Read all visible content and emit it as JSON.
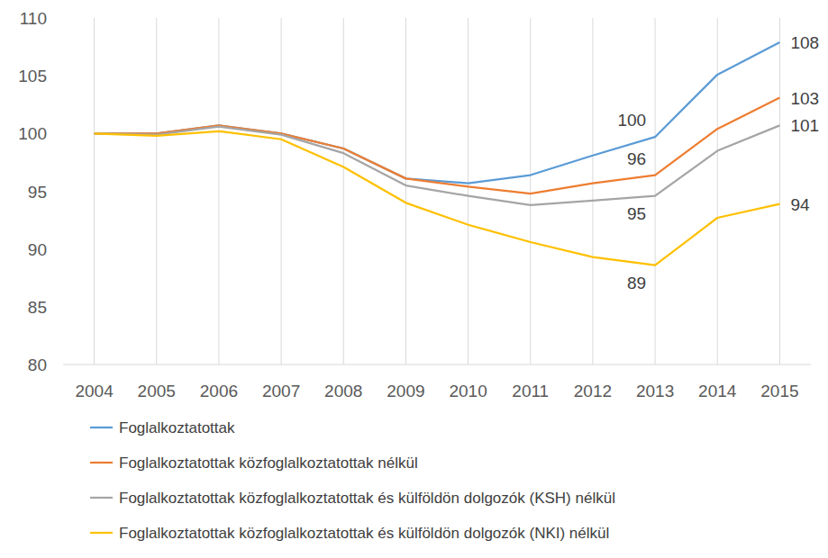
{
  "chart_data": {
    "type": "line",
    "categories": [
      "2004",
      "2005",
      "2006",
      "2007",
      "2008",
      "2009",
      "2010",
      "2011",
      "2012",
      "2013",
      "2014",
      "2015"
    ],
    "ylim": [
      80,
      110
    ],
    "yticks": [
      80,
      85,
      90,
      95,
      100,
      105,
      110
    ],
    "grid": "x",
    "legend": "bottom",
    "series": [
      {
        "name": "Foglalkoztatottak",
        "color": "#5b9bd5",
        "values": [
          100,
          100,
          100.7,
          100,
          98.7,
          96.1,
          95.7,
          96.4,
          98.1,
          99.7,
          105.1,
          107.9
        ],
        "value_labels": [
          null,
          null,
          null,
          null,
          null,
          null,
          null,
          null,
          null,
          "100",
          null,
          "108"
        ]
      },
      {
        "name": "Foglalkoztatottak közfoglalkoztatottak nélkül",
        "color": "#ed7d31",
        "values": [
          100,
          100,
          100.7,
          100,
          98.7,
          96.1,
          95.4,
          94.8,
          95.7,
          96.4,
          100.4,
          103.1
        ],
        "value_labels": [
          null,
          null,
          null,
          null,
          null,
          null,
          null,
          null,
          null,
          "96",
          null,
          "103"
        ]
      },
      {
        "name": "Foglalkoztatottak közfoglalkoztatottak és külföldön dolgozók (KSH) nélkül",
        "color": "#a5a5a5",
        "values": [
          100,
          99.9,
          100.6,
          99.9,
          98.3,
          95.5,
          94.6,
          93.8,
          94.2,
          94.6,
          98.5,
          100.7
        ],
        "value_labels": [
          null,
          null,
          null,
          null,
          null,
          null,
          null,
          null,
          null,
          "95",
          null,
          "101"
        ]
      },
      {
        "name": "Foglalkoztatottak közfoglalkoztatottak és külföldön dolgozók (NKI) nélkül",
        "color": "#ffc000",
        "values": [
          100,
          99.8,
          100.2,
          99.5,
          97.1,
          94.0,
          92.1,
          90.6,
          89.3,
          88.6,
          92.7,
          93.9
        ],
        "value_labels": [
          null,
          null,
          null,
          null,
          null,
          null,
          null,
          null,
          null,
          "89",
          null,
          "94"
        ]
      }
    ]
  }
}
